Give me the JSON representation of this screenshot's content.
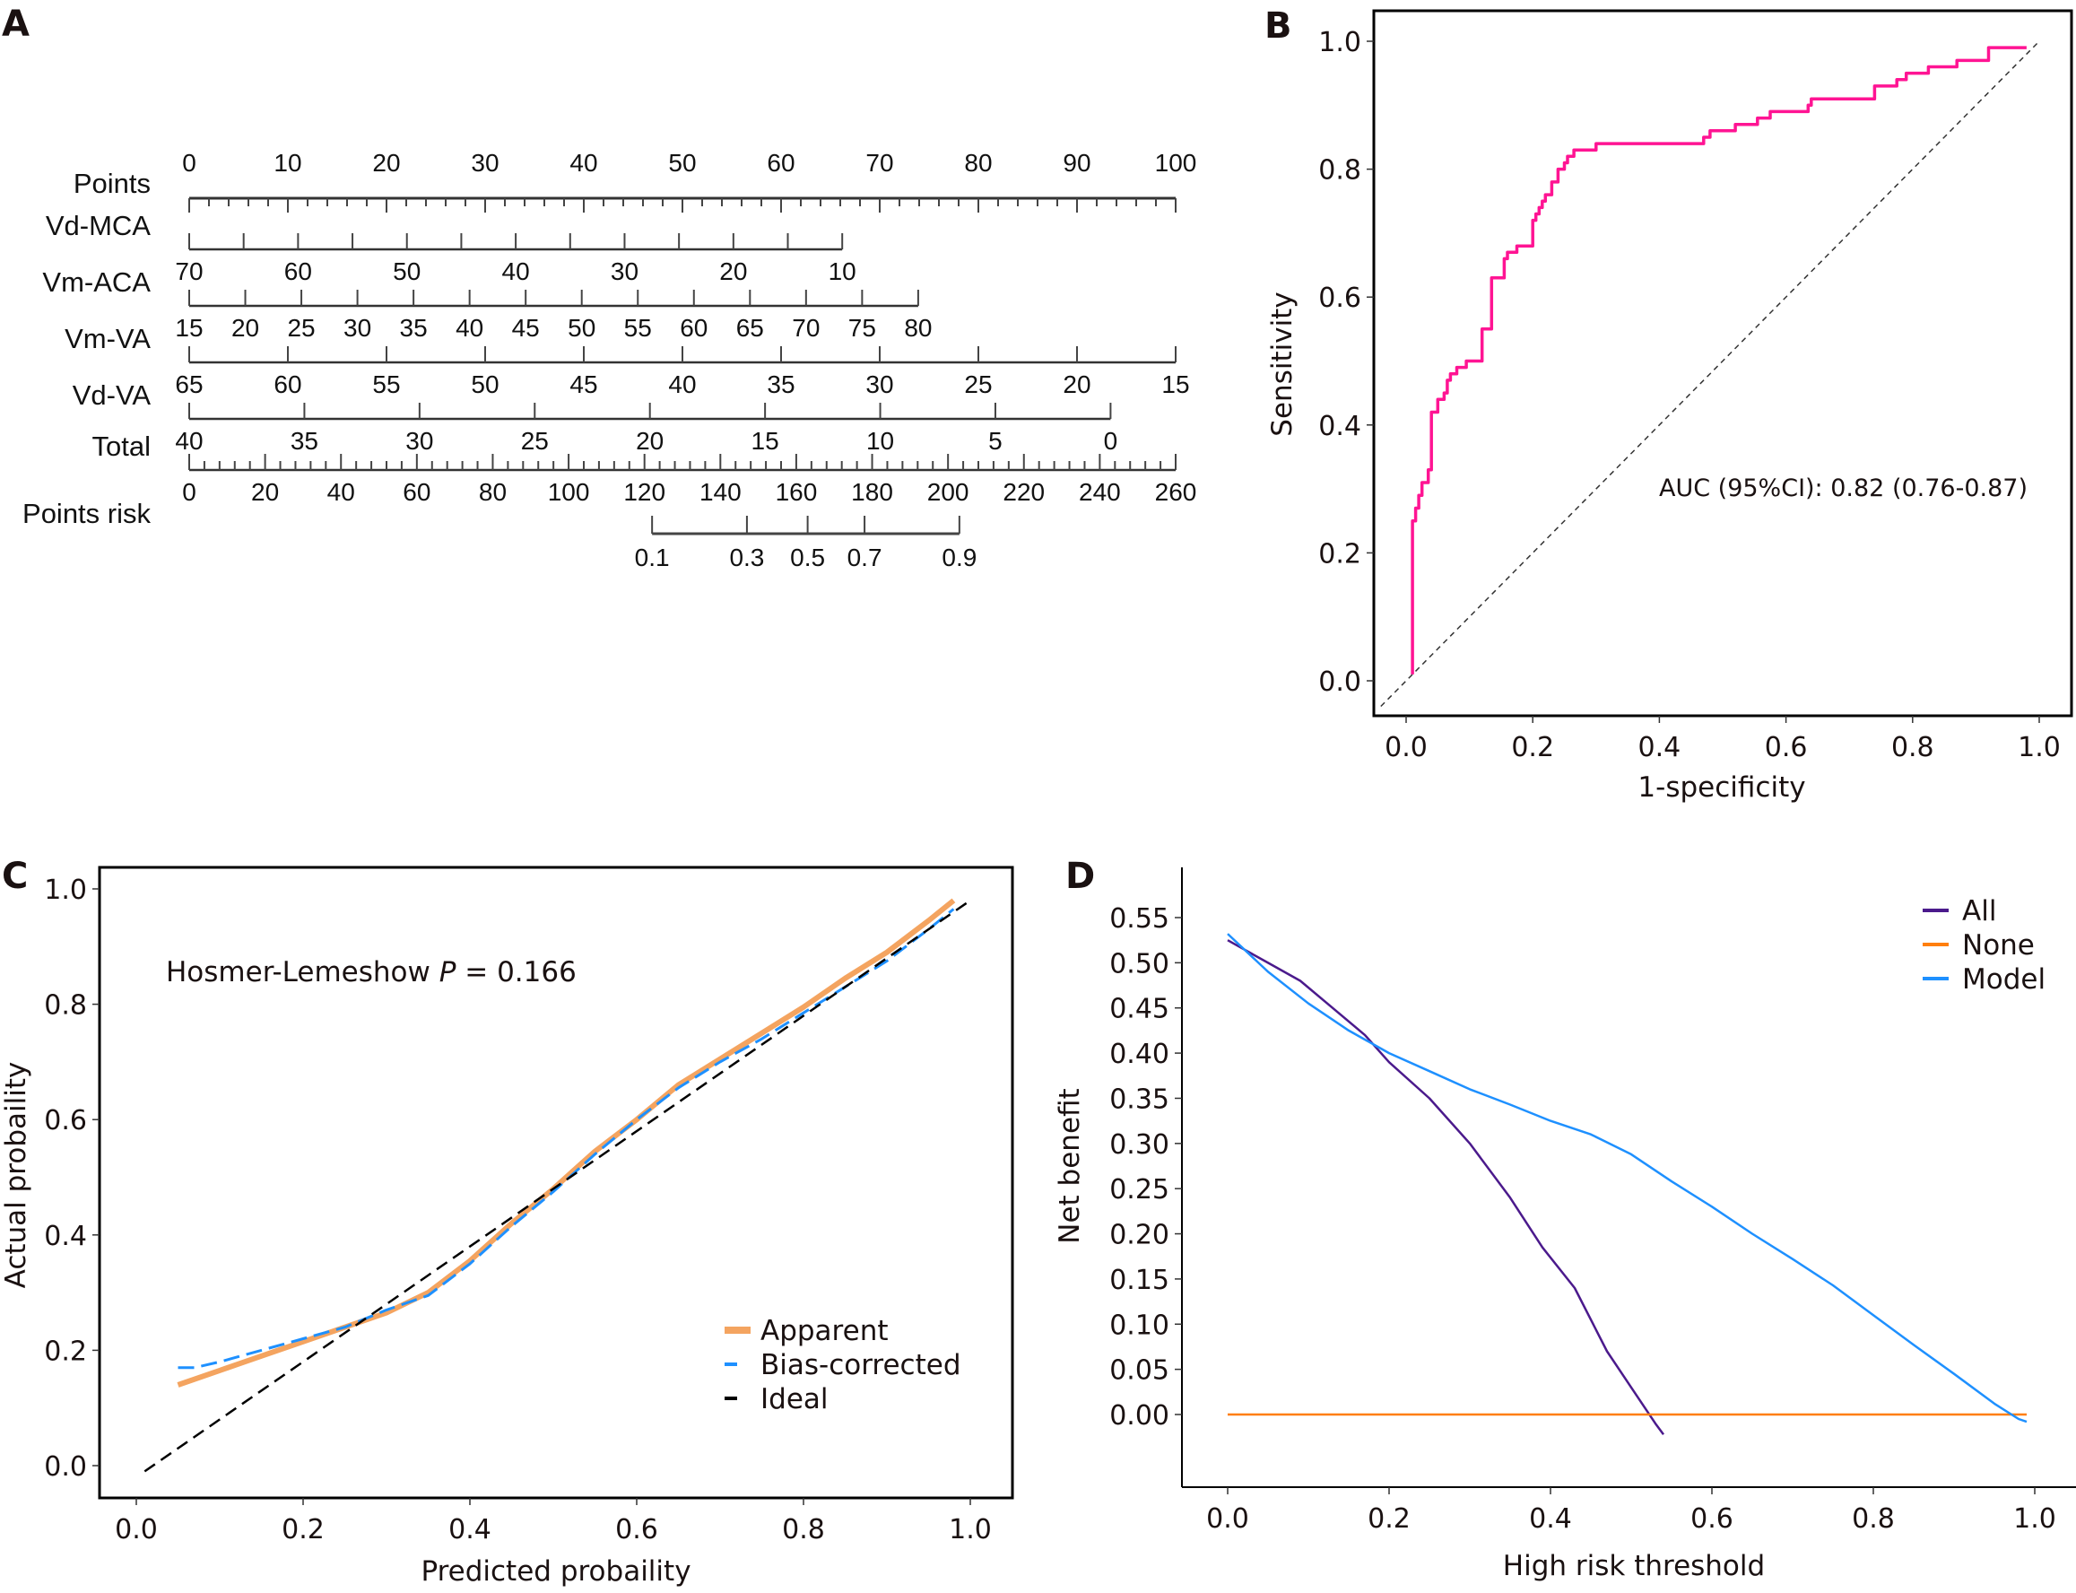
{
  "chart_data": [
    {
      "panel": "A",
      "type": "table",
      "subtype": "nomogram",
      "rows": [
        {
          "name": "Points",
          "ticks": [
            "0",
            "10",
            "20",
            "30",
            "40",
            "50",
            "60",
            "70",
            "80",
            "90",
            "100"
          ],
          "points_range": [
            0,
            100
          ],
          "minor_step": 2,
          "labels_above": true
        },
        {
          "name": "Vd-MCA",
          "ticks": [
            "70",
            "60",
            "50",
            "40",
            "30",
            "20",
            "10"
          ],
          "value_range": [
            70,
            10
          ],
          "points_range": [
            0,
            66.2
          ],
          "minor_step": 5
        },
        {
          "name": "Vm-ACA",
          "ticks": [
            "15",
            "20",
            "25",
            "30",
            "35",
            "40",
            "45",
            "50",
            "55",
            "60",
            "65",
            "70",
            "75",
            "80"
          ],
          "value_range": [
            15,
            80
          ],
          "points_range": [
            0,
            73.9
          ],
          "minor_step": 5
        },
        {
          "name": "Vm-VA",
          "ticks": [
            "65",
            "60",
            "55",
            "50",
            "45",
            "40",
            "35",
            "30",
            "25",
            "20",
            "15"
          ],
          "value_range": [
            65,
            15
          ],
          "points_range": [
            0,
            100
          ],
          "minor_step": 5
        },
        {
          "name": "Vd-VA",
          "ticks": [
            "40",
            "35",
            "30",
            "25",
            "20",
            "15",
            "10",
            "5",
            "0"
          ],
          "value_range": [
            40,
            0
          ],
          "points_range": [
            0,
            93.4
          ],
          "minor_step": 5
        },
        {
          "name": "Total",
          "ticks": [
            "0",
            "20",
            "40",
            "60",
            "80",
            "100",
            "120",
            "140",
            "160",
            "180",
            "200",
            "220",
            "240",
            "260"
          ],
          "value_range": [
            0,
            260
          ],
          "points_range": [
            0,
            100
          ],
          "minor_step": 4
        },
        {
          "name": "Points risk",
          "ticks": [
            "0.1",
            "0.3",
            "0.5",
            "0.7",
            "0.9"
          ],
          "total_points": [
            122,
            147,
            163,
            178,
            203
          ]
        }
      ]
    },
    {
      "panel": "B",
      "type": "line",
      "subtype": "roc",
      "title": "",
      "xlabel": "1-specificity",
      "ylabel": "Sensitivity",
      "xlim": [
        -0.04,
        1.04
      ],
      "ylim": [
        -0.04,
        1.04
      ],
      "xticks": [
        "0.0",
        "0.2",
        "0.4",
        "0.6",
        "0.8",
        "1.0"
      ],
      "yticks": [
        "0.0",
        "0.2",
        "0.4",
        "0.6",
        "0.8",
        "1.0"
      ],
      "annotation": "AUC (95%CI): 0.82 (0.76-0.87)",
      "auc": 0.82,
      "auc_ci": [
        0.76,
        0.87
      ],
      "series": [
        {
          "name": "ROC",
          "color": "#ff1493",
          "x": [
            0.01,
            0.01,
            0.015,
            0.015,
            0.02,
            0.02,
            0.025,
            0.025,
            0.035,
            0.035,
            0.04,
            0.04,
            0.05,
            0.05,
            0.06,
            0.06,
            0.065,
            0.065,
            0.07,
            0.07,
            0.08,
            0.08,
            0.095,
            0.095,
            0.12,
            0.12,
            0.135,
            0.135,
            0.155,
            0.155,
            0.16,
            0.16,
            0.175,
            0.175,
            0.2,
            0.2,
            0.205,
            0.205,
            0.21,
            0.21,
            0.215,
            0.215,
            0.22,
            0.22,
            0.23,
            0.23,
            0.24,
            0.24,
            0.25,
            0.25,
            0.255,
            0.255,
            0.265,
            0.265,
            0.28,
            0.28,
            0.3,
            0.3,
            0.395,
            0.395,
            0.47,
            0.47,
            0.48,
            0.48,
            0.52,
            0.52,
            0.555,
            0.555,
            0.575,
            0.575,
            0.635,
            0.635,
            0.64,
            0.64,
            0.7,
            0.7,
            0.74,
            0.74,
            0.775,
            0.775,
            0.79,
            0.79,
            0.825,
            0.825,
            0.87,
            0.87,
            0.92,
            0.92,
            0.98
          ],
          "y": [
            0.01,
            0.25,
            0.25,
            0.27,
            0.27,
            0.29,
            0.29,
            0.31,
            0.31,
            0.33,
            0.33,
            0.42,
            0.42,
            0.44,
            0.44,
            0.45,
            0.45,
            0.47,
            0.47,
            0.48,
            0.48,
            0.49,
            0.49,
            0.5,
            0.5,
            0.55,
            0.55,
            0.63,
            0.63,
            0.66,
            0.66,
            0.67,
            0.67,
            0.68,
            0.68,
            0.72,
            0.72,
            0.73,
            0.73,
            0.74,
            0.74,
            0.75,
            0.75,
            0.76,
            0.76,
            0.78,
            0.78,
            0.8,
            0.8,
            0.81,
            0.81,
            0.82,
            0.82,
            0.83,
            0.83,
            0.83,
            0.83,
            0.84,
            0.84,
            0.84,
            0.84,
            0.85,
            0.85,
            0.86,
            0.86,
            0.87,
            0.87,
            0.88,
            0.88,
            0.89,
            0.89,
            0.9,
            0.9,
            0.91,
            0.91,
            0.91,
            0.91,
            0.93,
            0.93,
            0.94,
            0.94,
            0.95,
            0.95,
            0.96,
            0.96,
            0.97,
            0.97,
            0.99,
            0.99
          ]
        },
        {
          "name": "Reference",
          "color": "#333333",
          "dashed": true,
          "x": [
            -0.04,
            1.0
          ],
          "y": [
            -0.04,
            1.0
          ]
        }
      ]
    },
    {
      "panel": "C",
      "type": "line",
      "subtype": "calibration",
      "xlabel": "Predicted probaility",
      "ylabel": "Actual probaility",
      "xlim": [
        -0.05,
        1.05
      ],
      "ylim": [
        -0.05,
        1.04
      ],
      "xticks": [
        "0.0",
        "0.2",
        "0.4",
        "0.6",
        "0.8",
        "1.0"
      ],
      "yticks": [
        "0.0",
        "0.2",
        "0.4",
        "0.6",
        "0.8",
        "1.0"
      ],
      "annotation": {
        "prefix": "Hosmer-Lemeshow ",
        "italic": "P",
        "suffix": " = 0.166"
      },
      "hosmer_lemeshow_p": 0.166,
      "legend_position": "bottom-right",
      "series": [
        {
          "name": "Apparent",
          "color": "#f4a460",
          "x": [
            0.05,
            0.1,
            0.15,
            0.2,
            0.25,
            0.3,
            0.35,
            0.4,
            0.45,
            0.5,
            0.55,
            0.6,
            0.65,
            0.7,
            0.75,
            0.8,
            0.85,
            0.9,
            0.95,
            0.98
          ],
          "y": [
            0.14,
            0.165,
            0.19,
            0.215,
            0.24,
            0.265,
            0.3,
            0.355,
            0.42,
            0.48,
            0.545,
            0.6,
            0.66,
            0.705,
            0.75,
            0.795,
            0.845,
            0.89,
            0.945,
            0.98
          ]
        },
        {
          "name": "Bias-corrected",
          "color": "#1e90ff",
          "dashed": true,
          "x": [
            0.05,
            0.07,
            0.1,
            0.15,
            0.2,
            0.25,
            0.3,
            0.35,
            0.4,
            0.45,
            0.5,
            0.55,
            0.6,
            0.65,
            0.7,
            0.75,
            0.8,
            0.85,
            0.9,
            0.95,
            0.98
          ],
          "y": [
            0.17,
            0.17,
            0.18,
            0.2,
            0.22,
            0.24,
            0.27,
            0.295,
            0.35,
            0.415,
            0.475,
            0.54,
            0.6,
            0.655,
            0.7,
            0.74,
            0.785,
            0.83,
            0.875,
            0.93,
            0.965
          ]
        },
        {
          "name": "Ideal",
          "color": "#000000",
          "dashed": true,
          "x": [
            0.01,
            1.0
          ],
          "y": [
            -0.01,
            0.98
          ]
        }
      ]
    },
    {
      "panel": "D",
      "type": "line",
      "subtype": "decision-curve",
      "xlabel": "High risk threshold",
      "ylabel": "Net benefit",
      "xlim": [
        -0.05,
        1.05
      ],
      "ylim": [
        -0.09,
        0.6
      ],
      "xticks": [
        "0.0",
        "0.2",
        "0.4",
        "0.6",
        "0.8",
        "1.0"
      ],
      "yticks": [
        "0.00",
        "0.05",
        "0.10",
        "0.15",
        "0.20",
        "0.25",
        "0.30",
        "0.35",
        "0.40",
        "0.45",
        "0.50",
        "0.55"
      ],
      "legend_position": "top-right",
      "series": [
        {
          "name": "All",
          "color": "#4b1a8c",
          "x": [
            0.0,
            0.05,
            0.09,
            0.13,
            0.17,
            0.2,
            0.25,
            0.3,
            0.35,
            0.39,
            0.43,
            0.47,
            0.5,
            0.53,
            0.54
          ],
          "y": [
            0.525,
            0.5,
            0.48,
            0.45,
            0.42,
            0.39,
            0.35,
            0.3,
            0.24,
            0.185,
            0.14,
            0.07,
            0.03,
            -0.01,
            -0.022
          ]
        },
        {
          "name": "None",
          "color": "#ff7f0e",
          "x": [
            0.0,
            0.99
          ],
          "y": [
            0.0,
            0.0
          ]
        },
        {
          "name": "Model",
          "color": "#1e90ff",
          "x": [
            0.0,
            0.05,
            0.1,
            0.15,
            0.2,
            0.25,
            0.3,
            0.35,
            0.4,
            0.45,
            0.5,
            0.55,
            0.6,
            0.65,
            0.7,
            0.75,
            0.8,
            0.85,
            0.9,
            0.95,
            0.98,
            0.99
          ],
          "y": [
            0.532,
            0.49,
            0.455,
            0.425,
            0.4,
            0.38,
            0.36,
            0.343,
            0.325,
            0.31,
            0.288,
            0.258,
            0.23,
            0.2,
            0.172,
            0.143,
            0.11,
            0.077,
            0.045,
            0.012,
            -0.005,
            -0.008
          ]
        }
      ]
    }
  ],
  "panels": {
    "a": {
      "letter": "A"
    },
    "b": {
      "letter": "B"
    },
    "c": {
      "letter": "C"
    },
    "d": {
      "letter": "D"
    }
  }
}
